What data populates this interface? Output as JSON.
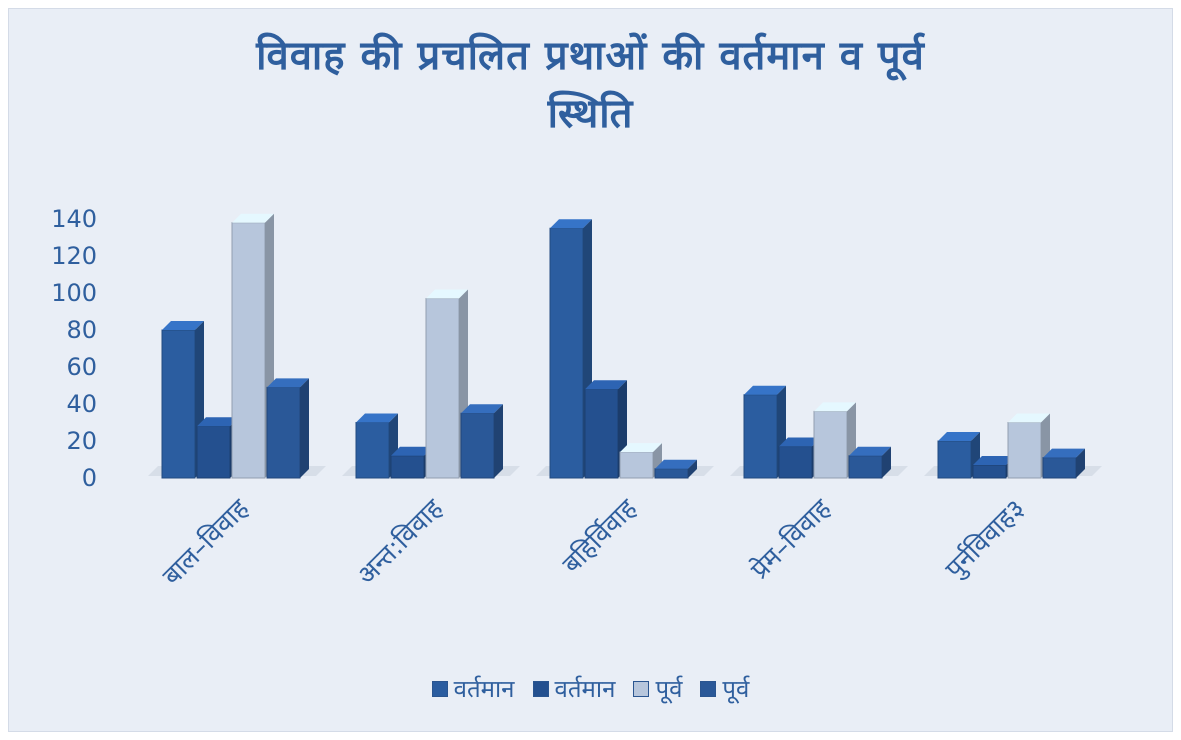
{
  "chart_data": {
    "type": "bar",
    "title": "विवाह की प्रचलित प्रथाओं की वर्तमान व पूर्व स्थिति",
    "title_lines": [
      "विवाह की प्रचलित प्रथाओं की वर्तमान व पूर्व",
      "स्थिति"
    ],
    "categories": [
      "बाल–विवाह",
      "अन्त:विवाह",
      "बहिर्विवाह",
      "प्रेम–विवाह",
      "पुर्नविवाह३"
    ],
    "series": [
      {
        "name": "वर्तमान",
        "values": [
          80,
          30,
          135,
          45,
          20
        ],
        "color": "#2b5da0"
      },
      {
        "name": "वर्तमान",
        "values": [
          28,
          12,
          48,
          17,
          7
        ],
        "color": "#24508f"
      },
      {
        "name": "पूर्व",
        "values": [
          138,
          97,
          14,
          36,
          30
        ],
        "color": "#b7c6dc"
      },
      {
        "name": "पूर्व",
        "values": [
          49,
          35,
          5,
          12,
          11
        ],
        "color": "#2a5898"
      }
    ],
    "y_ticks": [
      0,
      20,
      40,
      60,
      80,
      100,
      120,
      140
    ],
    "ylim": [
      0,
      140
    ],
    "legend_position": "bottom",
    "grid": false
  }
}
